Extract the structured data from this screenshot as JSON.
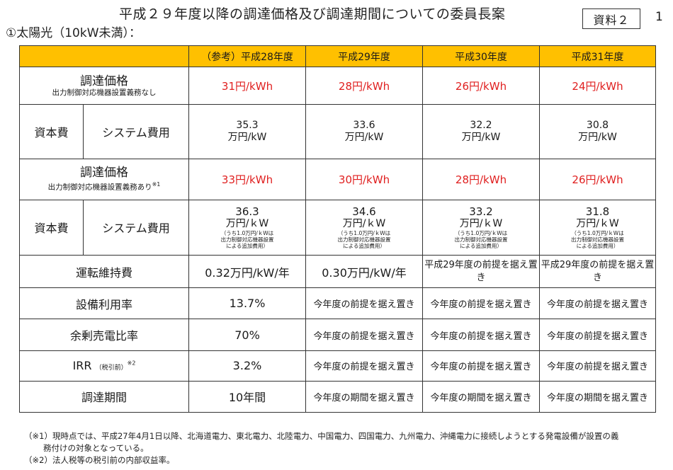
{
  "header": {
    "title": "平成２９年度以降の調達価格及び調達期間についての委員長案",
    "subtitle": "①太陽光（10kW未満）：",
    "badge": "資料２",
    "page_number": "1"
  },
  "table": {
    "columns": [
      "（参考）平成28年度",
      "平成29年度",
      "平成30年度",
      "平成31年度"
    ],
    "row_price1": {
      "label": "調達価格",
      "sublabel": "出力制御対応機器設置義務なし",
      "values": [
        "31円/kWh",
        "28円/kWh",
        "26円/kWh",
        "24円/kWh"
      ]
    },
    "row_cap1": {
      "label": "資本費",
      "sublabel": "システム費用",
      "values": [
        "35.3",
        "33.6",
        "32.2",
        "30.8"
      ],
      "unit": "万円/kW"
    },
    "row_price2": {
      "label": "調達価格",
      "sublabel": "出力制御対応機器設置義務あり",
      "mark": "※1",
      "values": [
        "33円/kWh",
        "30円/kWh",
        "28円/kWh",
        "26円/kWh"
      ]
    },
    "row_cap2": {
      "label": "資本費",
      "sublabel": "システム費用",
      "values": [
        "36.3",
        "34.6",
        "33.2",
        "31.8"
      ],
      "unit": "万円/ｋW",
      "note1": "（うち1.0万円/ｋWは",
      "note2": "出力制御対応機器設置",
      "note3": "による追加費用）"
    },
    "row_om": {
      "label": "運転維持費",
      "values": [
        "0.32万円/kW/年",
        "0.30万円/kW/年",
        "平成29年度の前提を据え置き",
        "平成29年度の前提を据え置き"
      ]
    },
    "row_util": {
      "label": "設備利用率",
      "values": [
        "13.7%",
        "今年度の前提を据え置き",
        "今年度の前提を据え置き",
        "今年度の前提を据え置き"
      ]
    },
    "row_surplus": {
      "label": "余剰売電比率",
      "values": [
        "70%",
        "今年度の前提を据え置き",
        "今年度の前提を据え置き",
        "今年度の前提を据え置き"
      ]
    },
    "row_irr": {
      "label": "IRR",
      "label_small": "（税引前）",
      "mark": "※2",
      "values": [
        "3.2%",
        "今年度の前提を据え置き",
        "今年度の前提を据え置き",
        "今年度の前提を据え置き"
      ]
    },
    "row_period": {
      "label": "調達期間",
      "values": [
        "10年間",
        "今年度の期間を据え置き",
        "今年度の期間を据え置き",
        "今年度の期間を据え置き"
      ]
    }
  },
  "footnotes": {
    "fn1_line1": "（※1）現時点では、平成27年4月1日以降、北海道電力、東北電力、北陸電力、中国電力、四国電力、九州電力、沖縄電力に接続しようとする発電設備が設置の義",
    "fn1_line2": "務付けの対象となっている。",
    "fn2": "（※2）法人税等の税引前の内部収益率。"
  }
}
